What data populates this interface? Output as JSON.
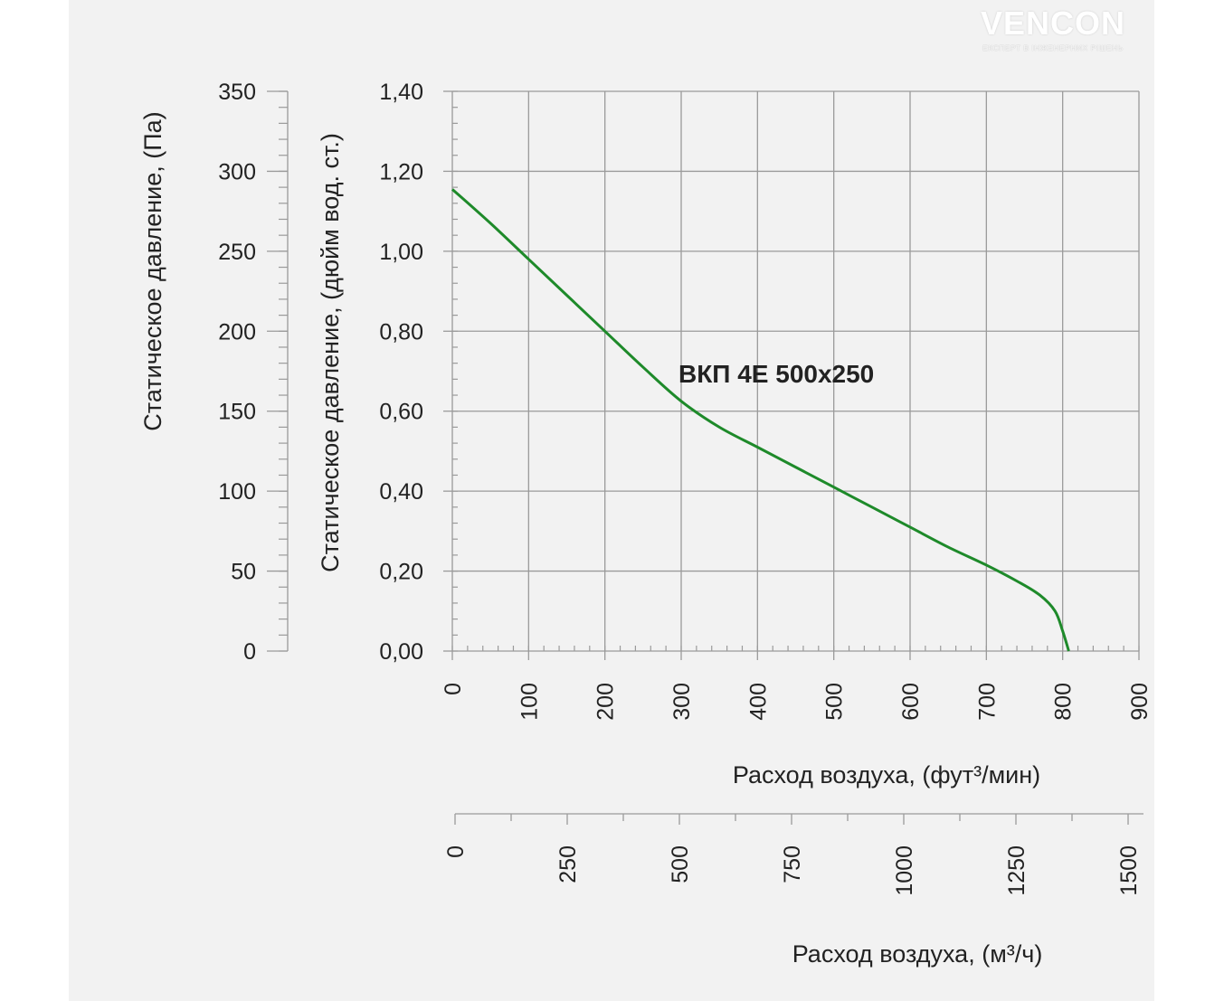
{
  "logo": {
    "name": "VENCON",
    "tagline": "ЕКСПЕРТ В ІНЖЕНЕРНИХ РІШЕНЬ"
  },
  "chart_data": {
    "type": "line",
    "title": "",
    "series": [
      {
        "name": "ВКП 4Е 500x250",
        "color": "#1e8a2a",
        "x": [
          0,
          50,
          100,
          150,
          200,
          250,
          300,
          350,
          400,
          450,
          500,
          550,
          600,
          650,
          700,
          740,
          770,
          790,
          800,
          808
        ],
        "y": [
          1.155,
          1.07,
          0.98,
          0.89,
          0.8,
          0.71,
          0.625,
          0.56,
          0.51,
          0.46,
          0.41,
          0.36,
          0.31,
          0.26,
          0.215,
          0.175,
          0.14,
          0.1,
          0.05,
          0.0
        ]
      }
    ],
    "annotation": "ВКП 4Е 500x250",
    "xlabel": "Расход воздуха, (фут³/мин)",
    "xlim": [
      0,
      900
    ],
    "xticks": [
      "0",
      "100",
      "200",
      "300",
      "400",
      "500",
      "600",
      "700",
      "800",
      "900"
    ],
    "ylabel": "Статическое давление, (дюйм вод. ст.)",
    "ylim": [
      0,
      1.4
    ],
    "yticks": [
      "0,00",
      "0,20",
      "0,40",
      "0,60",
      "0,80",
      "1,00",
      "1,20",
      "1,40"
    ],
    "y2label": "Статическое давление, (Па)",
    "y2lim": [
      0,
      350
    ],
    "y2ticks": [
      "0",
      "50",
      "100",
      "150",
      "200",
      "250",
      "300",
      "350"
    ],
    "x2label": "Расход воздуха, (м³/ч)",
    "x2lim": [
      0,
      1500
    ],
    "x2ticks": [
      "0",
      "250",
      "500",
      "750",
      "1000",
      "1250",
      "1500"
    ],
    "grid": true,
    "legend": "none"
  }
}
